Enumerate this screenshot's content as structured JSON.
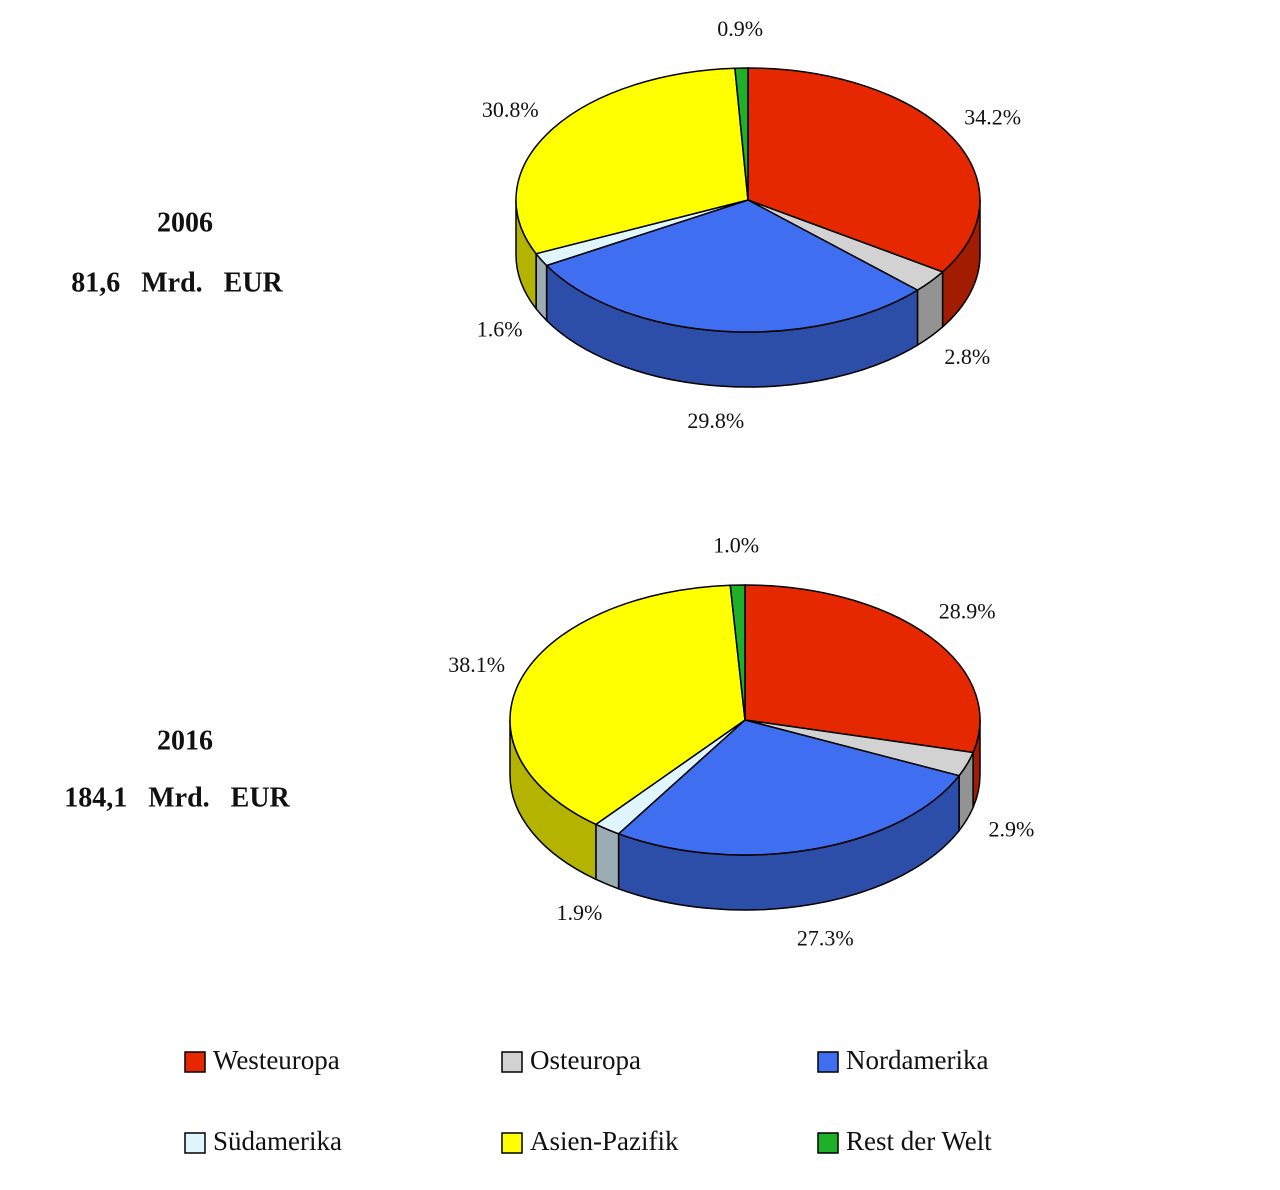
{
  "chart_data": {
    "type": "pie",
    "three_d": true,
    "categories": [
      "Westeuropa",
      "Osteuropa",
      "Nordamerika",
      "Südamerika",
      "Asien-Pazifik",
      "Rest der Welt"
    ],
    "colors": [
      "#e62800",
      "#d2d2d2",
      "#3f6ff0",
      "#dff6ff",
      "#ffff00",
      "#1fb02a"
    ],
    "pies": [
      {
        "title": "2006",
        "subtitle": "81,6 Mrd. EUR",
        "values": [
          34.2,
          2.8,
          29.8,
          1.6,
          30.8,
          0.9
        ],
        "value_labels": [
          "34.2%",
          "2.8%",
          "29.8%",
          "1.6%",
          "30.8%",
          "0.9%"
        ]
      },
      {
        "title": "2016",
        "subtitle": "184,1 Mrd. EUR",
        "values": [
          28.9,
          2.9,
          27.3,
          1.9,
          38.1,
          1.0
        ],
        "value_labels": [
          "28.9%",
          "2.9%",
          "27.3%",
          "1.9%",
          "38.1%",
          "1.0%"
        ]
      }
    ]
  }
}
